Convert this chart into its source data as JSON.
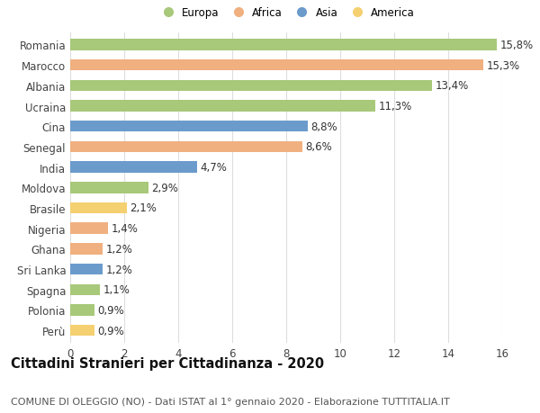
{
  "categories": [
    "Romania",
    "Marocco",
    "Albania",
    "Ucraina",
    "Cina",
    "Senegal",
    "India",
    "Moldova",
    "Brasile",
    "Nigeria",
    "Ghana",
    "Sri Lanka",
    "Spagna",
    "Polonia",
    "Perù"
  ],
  "values": [
    15.8,
    15.3,
    13.4,
    11.3,
    8.8,
    8.6,
    4.7,
    2.9,
    2.1,
    1.4,
    1.2,
    1.2,
    1.1,
    0.9,
    0.9
  ],
  "labels": [
    "15,8%",
    "15,3%",
    "13,4%",
    "11,3%",
    "8,8%",
    "8,6%",
    "4,7%",
    "2,9%",
    "2,1%",
    "1,4%",
    "1,2%",
    "1,2%",
    "1,1%",
    "0,9%",
    "0,9%"
  ],
  "continent": [
    "Europa",
    "Africa",
    "Europa",
    "Europa",
    "Asia",
    "Africa",
    "Asia",
    "Europa",
    "America",
    "Africa",
    "Africa",
    "Asia",
    "Europa",
    "Europa",
    "America"
  ],
  "colors": {
    "Europa": "#a8c87a",
    "Africa": "#f0b080",
    "Asia": "#6b9bcb",
    "America": "#f5d070"
  },
  "legend_order": [
    "Europa",
    "Africa",
    "Asia",
    "America"
  ],
  "title": "Cittadini Stranieri per Cittadinanza - 2020",
  "subtitle": "COMUNE DI OLEGGIO (NO) - Dati ISTAT al 1° gennaio 2020 - Elaborazione TUTTITALIA.IT",
  "xlim": [
    0,
    16
  ],
  "xticks": [
    0,
    2,
    4,
    6,
    8,
    10,
    12,
    14,
    16
  ],
  "background_color": "#ffffff",
  "grid_color": "#dddddd",
  "bar_height": 0.55,
  "label_fontsize": 8.5,
  "tick_fontsize": 8.5,
  "title_fontsize": 10.5,
  "subtitle_fontsize": 8.0
}
